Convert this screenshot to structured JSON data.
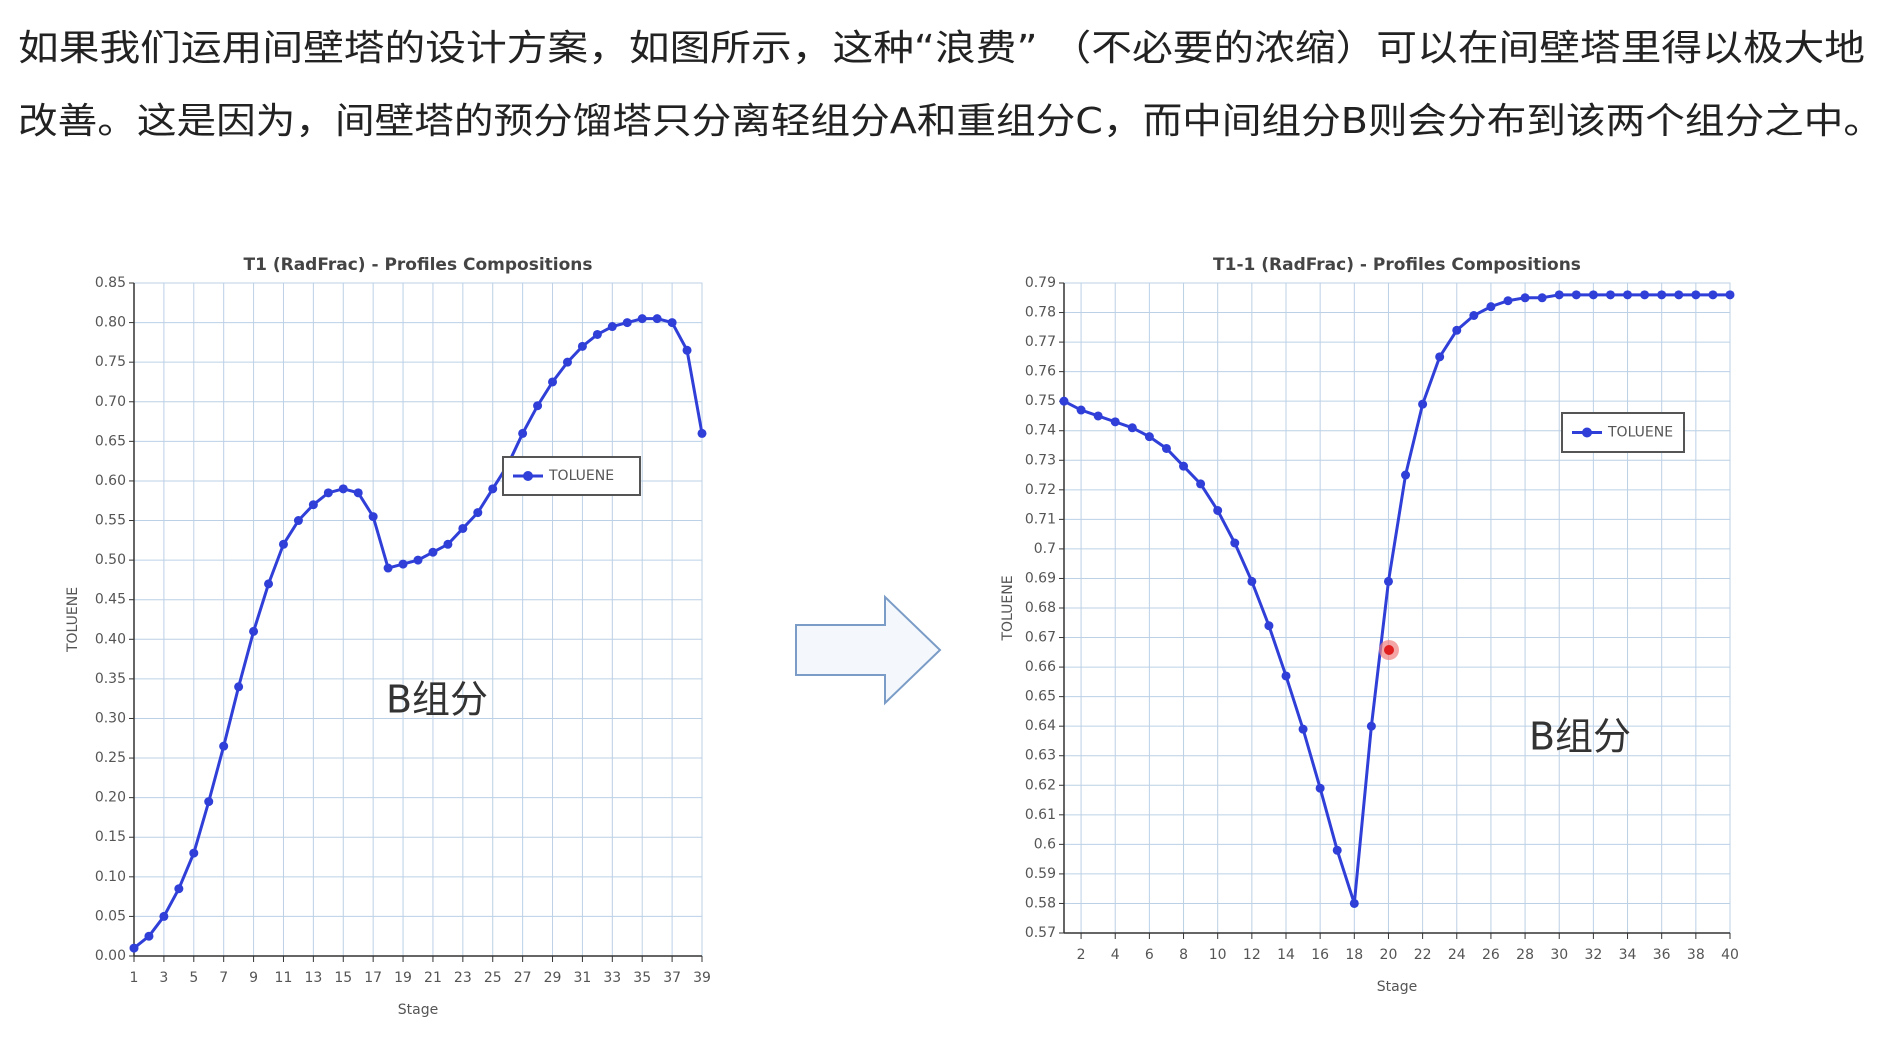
{
  "paragraph": [
    "如果我们运用间壁塔的设计方案，如图所示，这种“浪费” （不必要的浓缩）可以在间壁塔里得以极大地",
    "改善。这是因为，间壁塔的预分馏塔只分离轻组分A和重组分C，而中间组分B则会分布到该两个组分之中。"
  ],
  "chart_data": [
    {
      "type": "line",
      "title": "T1 (RadFrac) - Profiles Compositions",
      "x_label": "Stage",
      "y_label": "TOLUENE",
      "annotation": "B组分",
      "x": [
        1,
        2,
        3,
        4,
        5,
        6,
        7,
        8,
        9,
        10,
        11,
        12,
        13,
        14,
        15,
        16,
        17,
        18,
        19,
        20,
        21,
        22,
        23,
        24,
        25,
        26,
        27,
        28,
        29,
        30,
        31,
        32,
        33,
        34,
        35,
        36,
        37,
        38,
        39
      ],
      "series": [
        {
          "name": "TOLUENE",
          "color": "#2f3fd8",
          "values": [
            0.01,
            0.025,
            0.05,
            0.085,
            0.13,
            0.195,
            0.265,
            0.34,
            0.41,
            0.47,
            0.52,
            0.55,
            0.57,
            0.585,
            0.59,
            0.585,
            0.555,
            0.49,
            0.495,
            0.5,
            0.51,
            0.52,
            0.54,
            0.56,
            0.59,
            0.62,
            0.66,
            0.695,
            0.725,
            0.75,
            0.77,
            0.785,
            0.795,
            0.8,
            0.805,
            0.805,
            0.8,
            0.765,
            0.66
          ]
        }
      ],
      "xlim": [
        1,
        39
      ],
      "xticks": [
        1,
        3,
        5,
        7,
        9,
        11,
        13,
        15,
        17,
        19,
        21,
        23,
        25,
        27,
        29,
        31,
        33,
        35,
        37,
        39
      ],
      "ylim": [
        0,
        0.85
      ],
      "yticks": [
        {
          "value": 0,
          "label": "0.00"
        },
        0.05,
        {
          "value": 0.1,
          "label": "0.10"
        },
        0.15,
        {
          "value": 0.2,
          "label": "0.20"
        },
        0.25,
        {
          "value": 0.3,
          "label": "0.30"
        },
        0.35,
        {
          "value": 0.4,
          "label": "0.40"
        },
        0.45,
        {
          "value": 0.5,
          "label": "0.50"
        },
        0.55,
        {
          "value": 0.6,
          "label": "0.60"
        },
        0.65,
        {
          "value": 0.7,
          "label": "0.70"
        },
        0.75,
        {
          "value": 0.8,
          "label": "0.80"
        },
        0.85
      ],
      "grid": true,
      "legend": "upper right"
    },
    {
      "type": "line",
      "title": "T1-1 (RadFrac) - Profiles Compositions",
      "x_label": "Stage",
      "y_label": "TOLUENE",
      "annotation": "B组分",
      "x": [
        1,
        2,
        3,
        4,
        5,
        6,
        7,
        8,
        9,
        10,
        11,
        12,
        13,
        14,
        15,
        16,
        17,
        18,
        19,
        20,
        21,
        22,
        23,
        24,
        25,
        26,
        27,
        28,
        29,
        30,
        31,
        32,
        33,
        34,
        35,
        36,
        37,
        38,
        39,
        40
      ],
      "series": [
        {
          "name": "TOLUENE",
          "color": "#2f3fd8",
          "values": [
            0.75,
            0.747,
            0.745,
            0.743,
            0.741,
            0.738,
            0.734,
            0.728,
            0.722,
            0.713,
            0.702,
            0.689,
            0.674,
            0.657,
            0.639,
            0.619,
            0.598,
            0.58,
            0.64,
            0.689,
            0.725,
            0.749,
            0.765,
            0.774,
            0.779,
            0.782,
            0.784,
            0.785,
            0.785,
            0.786,
            0.786,
            0.786,
            0.786,
            0.786,
            0.786,
            0.786,
            0.786,
            0.786,
            0.786,
            0.786
          ]
        }
      ],
      "xlim": [
        1,
        40
      ],
      "xticks": [
        2,
        4,
        6,
        8,
        10,
        12,
        14,
        16,
        18,
        20,
        22,
        24,
        26,
        28,
        30,
        32,
        34,
        36,
        38,
        40
      ],
      "ylim": [
        0.57,
        0.79
      ],
      "yticks": [
        0.57,
        0.58,
        0.59,
        0.6,
        0.61,
        0.62,
        0.63,
        0.64,
        0.65,
        0.66,
        0.67,
        0.68,
        0.69,
        0.7,
        0.71,
        0.72,
        0.73,
        0.74,
        0.75,
        0.76,
        0.77,
        0.78,
        0.79
      ],
      "grid": true,
      "legend": "upper right"
    }
  ]
}
